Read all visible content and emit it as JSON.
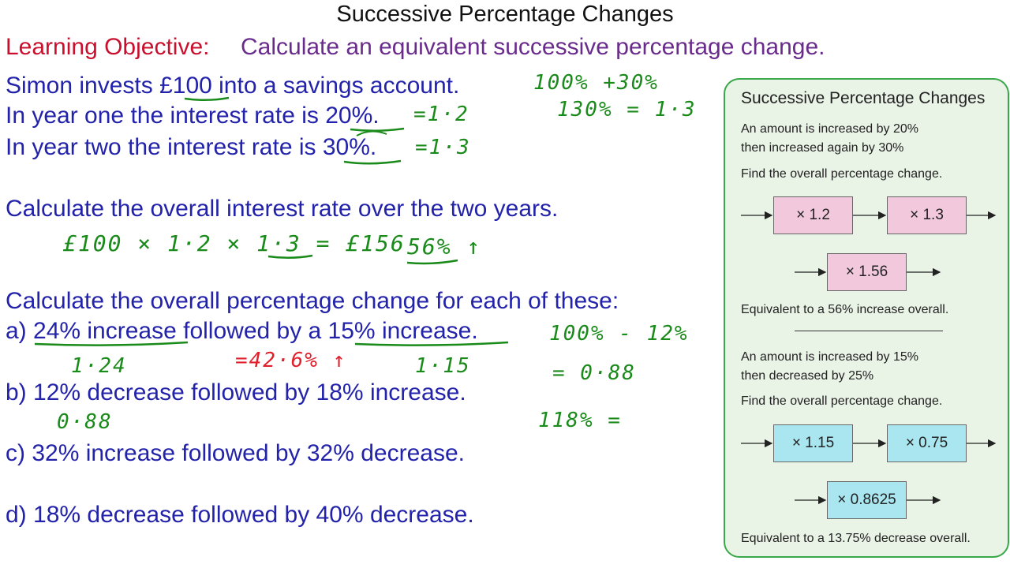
{
  "title": "Successive Percentage Changes",
  "objective": {
    "label": "Learning Objective:",
    "text": "Calculate an equivalent successive percentage change."
  },
  "problem": {
    "line1": "Simon invests £100 into a savings account.",
    "line2": "In year one the interest rate is 20%.",
    "line3": "In year two the interest rate is 30%.",
    "question": "Calculate the overall interest rate over the two years."
  },
  "exercise": {
    "prompt": "Calculate the overall percentage change for each of these:",
    "a": "a) 24% increase followed by a 15% increase.",
    "b": "b) 12% decrease followed by 18% increase.",
    "c": "c) 32% increase followed by 32% decrease.",
    "d": "d) 18% decrease followed by 40% decrease."
  },
  "handwriting": {
    "m1": "=1·2",
    "m2": "=1·3",
    "side1": "100% +30%",
    "side2": "130% = 1·3",
    "calc": "£100 × 1·2 × 1·3 = £156",
    "result": "56% ↑",
    "a1": "1·24",
    "a2": "1·15",
    "a_res": "=42·6% ↑",
    "b1": "0·88",
    "s3": "100% - 12%",
    "s4": "= 0·88",
    "s5": "118% ="
  },
  "panel": {
    "title": "Successive Percentage Changes",
    "ex1_line1": "An amount is increased by 20%",
    "ex1_line2": "then increased again by 30%",
    "ex1_find": "Find the overall percentage change.",
    "ex1_box1": "× 1.2",
    "ex1_box2": "× 1.3",
    "ex1_box3": "× 1.56",
    "ex1_equiv": "Equivalent to a 56% increase overall.",
    "ex2_line1": "An amount is increased by 15%",
    "ex2_line2": "then decreased by 25%",
    "ex2_find": "Find the overall percentage change.",
    "ex2_box1": "× 1.15",
    "ex2_box2": "× 0.75",
    "ex2_box3": "× 0.8625",
    "ex2_equiv": "Equivalent to a 13.75% decrease overall."
  },
  "colors": {
    "objective_label": "#c8102e",
    "objective_text": "#6a2c8c",
    "question_text": "#2222aa",
    "handwriting": "#1a8a1a",
    "handwriting_red": "#e0202c",
    "panel_border": "#3aa84a",
    "panel_bg": "#e9f3e6",
    "box_pink": "#f2c8dc",
    "box_cyan": "#a9e6f0"
  }
}
